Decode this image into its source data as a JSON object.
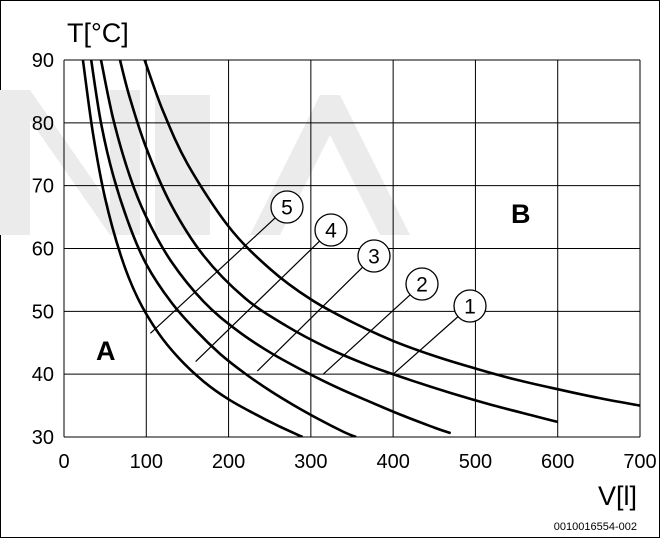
{
  "chart_data": {
    "type": "line",
    "title": "",
    "xlabel": "V[l]",
    "ylabel": "T[°C]",
    "xlim": [
      0,
      700
    ],
    "ylim": [
      30,
      90
    ],
    "x_ticks": [
      "0",
      "100",
      "200",
      "300",
      "400",
      "500",
      "600",
      "700"
    ],
    "y_ticks": [
      "30",
      "40",
      "50",
      "60",
      "70",
      "80",
      "90"
    ],
    "grid": true,
    "series": [
      {
        "name": "1",
        "x": [
          98,
          120,
          150,
          200,
          250,
          300,
          350,
          400,
          450,
          500,
          550,
          600,
          650,
          700
        ],
        "y": [
          90,
          82,
          73.5,
          63.5,
          56.8,
          51.9,
          48.3,
          45.3,
          42.9,
          40.9,
          39.1,
          37.6,
          36.2,
          35.0
        ]
      },
      {
        "name": "2",
        "x": [
          68,
          80,
          100,
          130,
          170,
          220,
          270,
          320,
          370,
          420,
          470,
          520,
          570,
          600
        ],
        "y": [
          90,
          84,
          76,
          67,
          58.8,
          52.1,
          47.7,
          44.2,
          41.4,
          39.1,
          37.0,
          35.1,
          33.4,
          32.4
        ]
      },
      {
        "name": "3",
        "x": [
          45,
          60,
          80,
          100,
          130,
          170,
          210,
          250,
          290,
          330,
          370,
          410,
          450,
          470
        ],
        "y": [
          90,
          80.5,
          71.5,
          65,
          58,
          51.5,
          47,
          43.5,
          40.6,
          38.0,
          35.7,
          33.5,
          31.5,
          30.6
        ]
      },
      {
        "name": "4",
        "x": [
          33,
          45,
          60,
          80,
          100,
          130,
          160,
          190,
          220,
          250,
          280,
          310,
          340,
          355
        ],
        "y": [
          90,
          80,
          71.5,
          63.5,
          57.5,
          51.5,
          47,
          43.2,
          40.1,
          37.4,
          35.0,
          32.8,
          30.8,
          30.0
        ]
      },
      {
        "name": "5",
        "x": [
          23,
          35,
          50,
          70,
          90,
          115,
          140,
          170,
          200,
          230,
          260,
          290
        ],
        "y": [
          90,
          78.5,
          68,
          58.5,
          52,
          46.5,
          42.5,
          38.8,
          36,
          33.8,
          31.8,
          30.0
        ]
      }
    ],
    "callouts": [
      {
        "label": "1",
        "leader_from": [
          400,
          40
        ]
      },
      {
        "label": "2",
        "leader_from": [
          315,
          40
        ]
      },
      {
        "label": "3",
        "leader_from": [
          235,
          40.5
        ]
      },
      {
        "label": "4",
        "leader_from": [
          160,
          42
        ]
      },
      {
        "label": "5",
        "leader_from": [
          105,
          46.5
        ]
      }
    ],
    "regions": [
      "A",
      "B"
    ],
    "figure_code": "0010016554-002"
  }
}
